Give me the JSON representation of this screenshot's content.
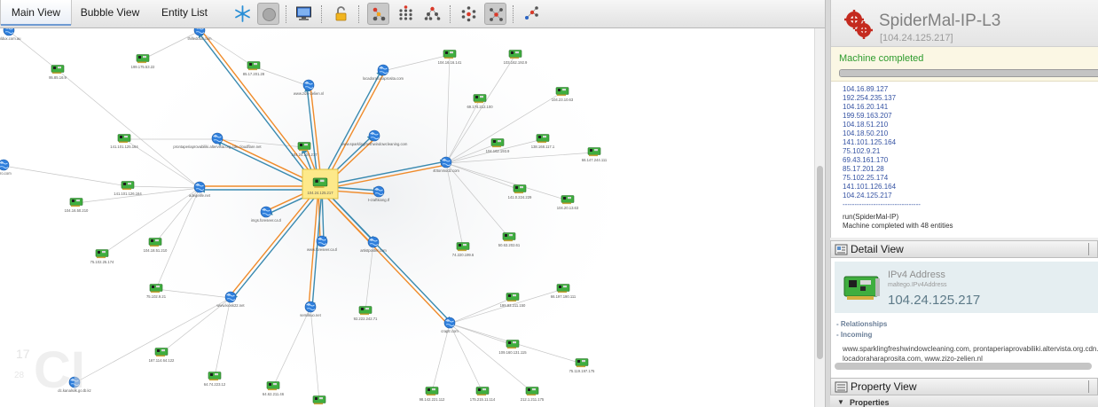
{
  "tabs": [
    {
      "label": "Main View",
      "active": true
    },
    {
      "label": "Bubble View",
      "active": false
    },
    {
      "label": "Entity List",
      "active": false
    }
  ],
  "toolbar_icons": [
    "freeze-icon",
    "stop-icon",
    "monitor-icon",
    "lock-icon",
    "hierarchical-layout-icon",
    "block-layout-icon",
    "tree-layout-icon",
    "organic-layout-icon",
    "interactive-layout-icon",
    "spring-layout-icon"
  ],
  "machine": {
    "title": "SpiderMal-IP-L3",
    "subtitle": "[104.24.125.217]",
    "status": "Machine completed",
    "progress": 1.0,
    "log_ips": [
      "104.16.89.127",
      "192.254.235.137",
      "104.16.20.141",
      "199.59.163.207",
      "104.18.51.210",
      "104.18.50.210",
      "141.101.125.164",
      "75.102.9.21",
      "69.43.161.170",
      "85.17.201.28",
      "75.102.25.174",
      "141.101.126.164",
      "104.24.125.217"
    ],
    "log_separator": "---------------------------------",
    "log_run": "run(SpiderMal-IP)",
    "log_done": "Machine completed with 48 entities"
  },
  "detail": {
    "panel_title": "Detail View",
    "type": "IPv4 Address",
    "type_id": "maltego.IPv4Address",
    "value": "104.24.125.217",
    "relationships_label": "- Relationships",
    "incoming_label": "- Incoming",
    "incoming_items": [
      "www.sparklingfreshwindowcleaning.com, prontaperiaprovabiliki.altervista.org.cdn.cl",
      "locadoraharaprosita.com,                  www.zizo-zelien.nl"
    ]
  },
  "property": {
    "panel_title": "Property View",
    "section": "Properties"
  },
  "graph": {
    "center": {
      "id": "c",
      "label": "104.24.125.217"
    },
    "nodes": [
      {
        "id": "a1",
        "type": "ip",
        "label": "199.175.53.22"
      },
      {
        "id": "a2",
        "type": "ip",
        "label": "85.17.201.28"
      },
      {
        "id": "a3",
        "type": "ip",
        "label": "104.16.16.141"
      },
      {
        "id": "a4",
        "type": "ip",
        "label": "103.162.192.9"
      },
      {
        "id": "a5",
        "type": "ip",
        "label": "104.23.10.63"
      },
      {
        "id": "a6",
        "type": "ip",
        "label": "69.174.212.100"
      },
      {
        "id": "a7",
        "type": "ip",
        "label": "104.162.193.9"
      },
      {
        "id": "a8",
        "type": "ip",
        "label": "138.168.117.1"
      },
      {
        "id": "a9",
        "type": "ip",
        "label": "66.147.244.111"
      },
      {
        "id": "a10",
        "type": "ip",
        "label": "95.85.16.9"
      },
      {
        "id": "a11",
        "type": "ip",
        "label": "141.101.125.164"
      },
      {
        "id": "a12",
        "type": "ip",
        "label": "141.101.126.164"
      },
      {
        "id": "a13",
        "type": "ip",
        "label": "104.16.50.210"
      },
      {
        "id": "a14",
        "type": "ip",
        "label": "104.18.51.210"
      },
      {
        "id": "a15",
        "type": "ip",
        "label": "75.102.25.174"
      },
      {
        "id": "a16",
        "type": "ip",
        "label": "75.102.9.21"
      },
      {
        "id": "a17",
        "type": "ip",
        "label": "104.24.124.217"
      },
      {
        "id": "a18",
        "type": "ip",
        "label": "141.0.224.229"
      },
      {
        "id": "a19",
        "type": "ip",
        "label": "104.20.13.63"
      },
      {
        "id": "a20",
        "type": "ip",
        "label": "74.220.199.6"
      },
      {
        "id": "a21",
        "type": "ip",
        "label": "50.63.202.61"
      },
      {
        "id": "a22",
        "type": "ip",
        "label": "92.222.242.71"
      },
      {
        "id": "a23",
        "type": "ip",
        "label": "199.83.211.150"
      },
      {
        "id": "a24",
        "type": "ip",
        "label": "66.197.190.111"
      },
      {
        "id": "a25",
        "type": "ip",
        "label": "109.160.131.115"
      },
      {
        "id": "a26",
        "type": "ip",
        "label": "75.119.197.175"
      },
      {
        "id": "a27",
        "type": "ip",
        "label": "167.114.64.122"
      },
      {
        "id": "a28",
        "type": "ip",
        "label": "64.74.223.12"
      },
      {
        "id": "a29",
        "type": "ip",
        "label": "64.62.211.46"
      },
      {
        "id": "a30",
        "type": "ip",
        "label": "209.219.103.153"
      },
      {
        "id": "a31",
        "type": "ip",
        "label": "98.142.221.112"
      },
      {
        "id": "a32",
        "type": "ip",
        "label": "175.215.11.114"
      },
      {
        "id": "a33",
        "type": "ip",
        "label": "212.1.211.175"
      },
      {
        "id": "d1",
        "type": "domain",
        "label": "thilledoud.com"
      },
      {
        "id": "d2",
        "type": "domain",
        "label": "www.zizo-zelien.nl"
      },
      {
        "id": "d3",
        "type": "domain",
        "label": "locadoraharaprosita.com"
      },
      {
        "id": "d4",
        "type": "domain",
        "label": "prontaperiaprovabiliki.altervista.org.cdn.cloudflare.net"
      },
      {
        "id": "d5",
        "type": "domain",
        "label": "www.sparklingfreshwindowcleaning.com"
      },
      {
        "id": "d6",
        "type": "domain",
        "label": "40tonmodz.com"
      },
      {
        "id": "d7",
        "type": "domain",
        "label": "adeqelife.net"
      },
      {
        "id": "d8",
        "type": "domain",
        "label": "t-craftkiong.tf"
      },
      {
        "id": "d9",
        "type": "domain",
        "label": "imgs.foreseer.ca.tl"
      },
      {
        "id": "d10",
        "type": "domain",
        "label": "www.foreseer.ca.tl"
      },
      {
        "id": "d11",
        "type": "domain",
        "label": "artistposter.com"
      },
      {
        "id": "d12",
        "type": "domain",
        "label": "www.kiosk22.net"
      },
      {
        "id": "d13",
        "type": "domain",
        "label": "semilkuo.net"
      },
      {
        "id": "d14",
        "type": "domain",
        "label": "craptr.com"
      },
      {
        "id": "d15",
        "type": "domain",
        "label": "dc.kanalsilk.go.tb.kz"
      },
      {
        "id": "d16",
        "type": "domain",
        "label": "sbldux.com.au"
      },
      {
        "id": "d17",
        "type": "domain",
        "label": "doro.com"
      }
    ]
  }
}
